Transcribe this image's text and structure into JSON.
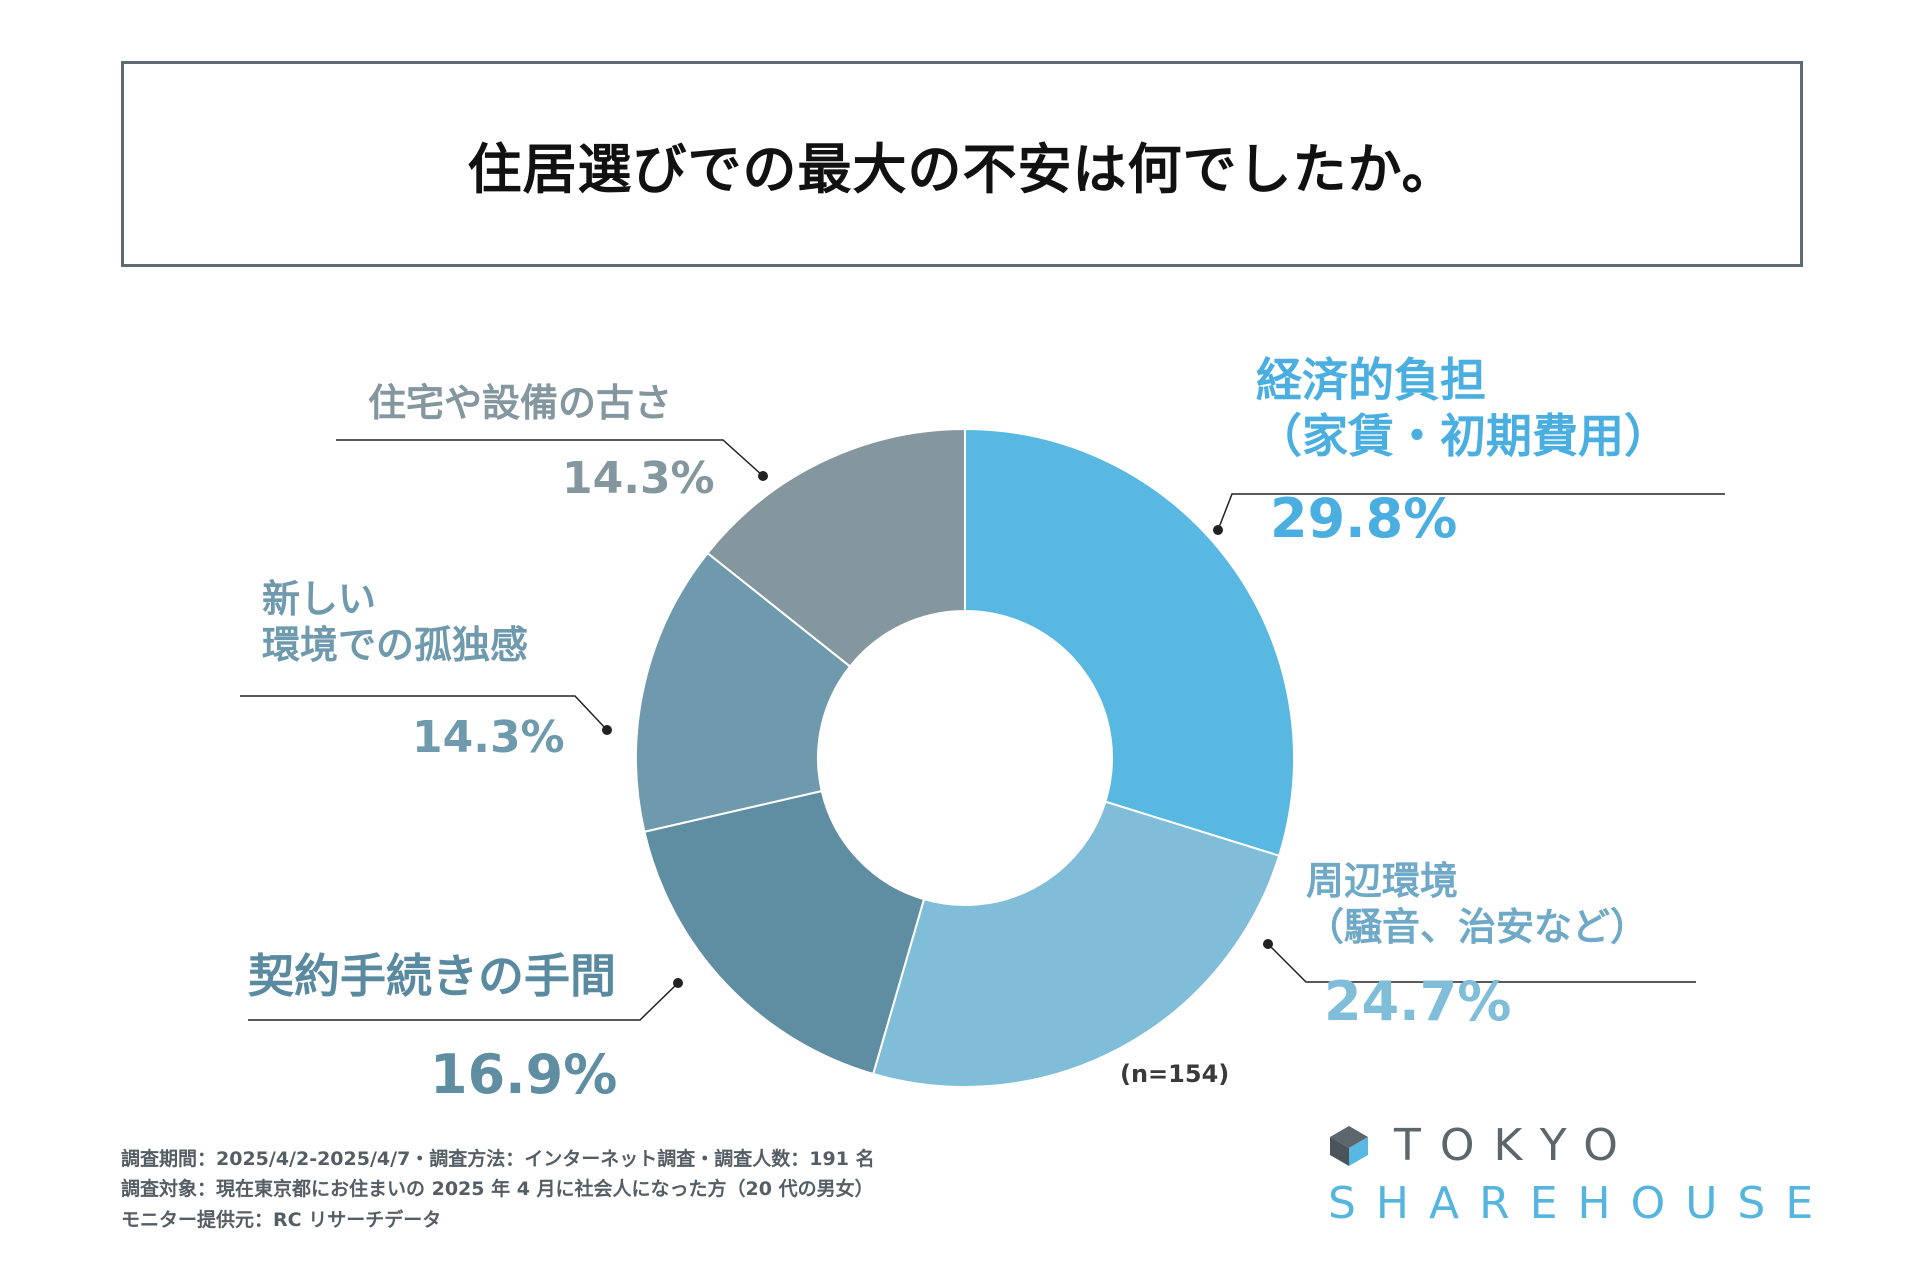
{
  "title": "住居選びでの最大の不安は何でしたか。",
  "chart_data": {
    "type": "pie",
    "variant": "donut",
    "title": "住居選びでの最大の不安は何でしたか。",
    "n_label": "(n=154)",
    "slices": [
      {
        "label_lines": [
          "経済的負担",
          "（家賃・初期費用）"
        ],
        "value": 29.8,
        "value_text": "29.8%",
        "color": "#59b8e2"
      },
      {
        "label_lines": [
          "周辺環境",
          "（騒音、治安など）"
        ],
        "value": 24.7,
        "value_text": "24.7%",
        "color": "#7fbdd9"
      },
      {
        "label_lines": [
          "契約手続きの手間"
        ],
        "value": 16.9,
        "value_text": "16.9%",
        "color": "#5f8ea3"
      },
      {
        "label_lines": [
          "新しい",
          "環境での孤独感"
        ],
        "value": 14.3,
        "value_text": "14.3%",
        "color": "#6f9aad"
      },
      {
        "label_lines": [
          "住宅や設備の古さ"
        ],
        "value": 14.3,
        "value_text": "14.3%",
        "color": "#85979e"
      }
    ]
  },
  "footer": {
    "lines": [
      "調査期間：2025/4/2-2025/4/7・調査方法：インターネット調査・調査人数：191 名",
      "調査対象：現在東京都にお住まいの 2025 年 4 月に社会人になった方（20 代の男女）",
      "モニター提供元：RC リサーチデータ"
    ]
  },
  "logo": {
    "line1": "TOKYO",
    "line2": "SHAREHOUSE"
  }
}
